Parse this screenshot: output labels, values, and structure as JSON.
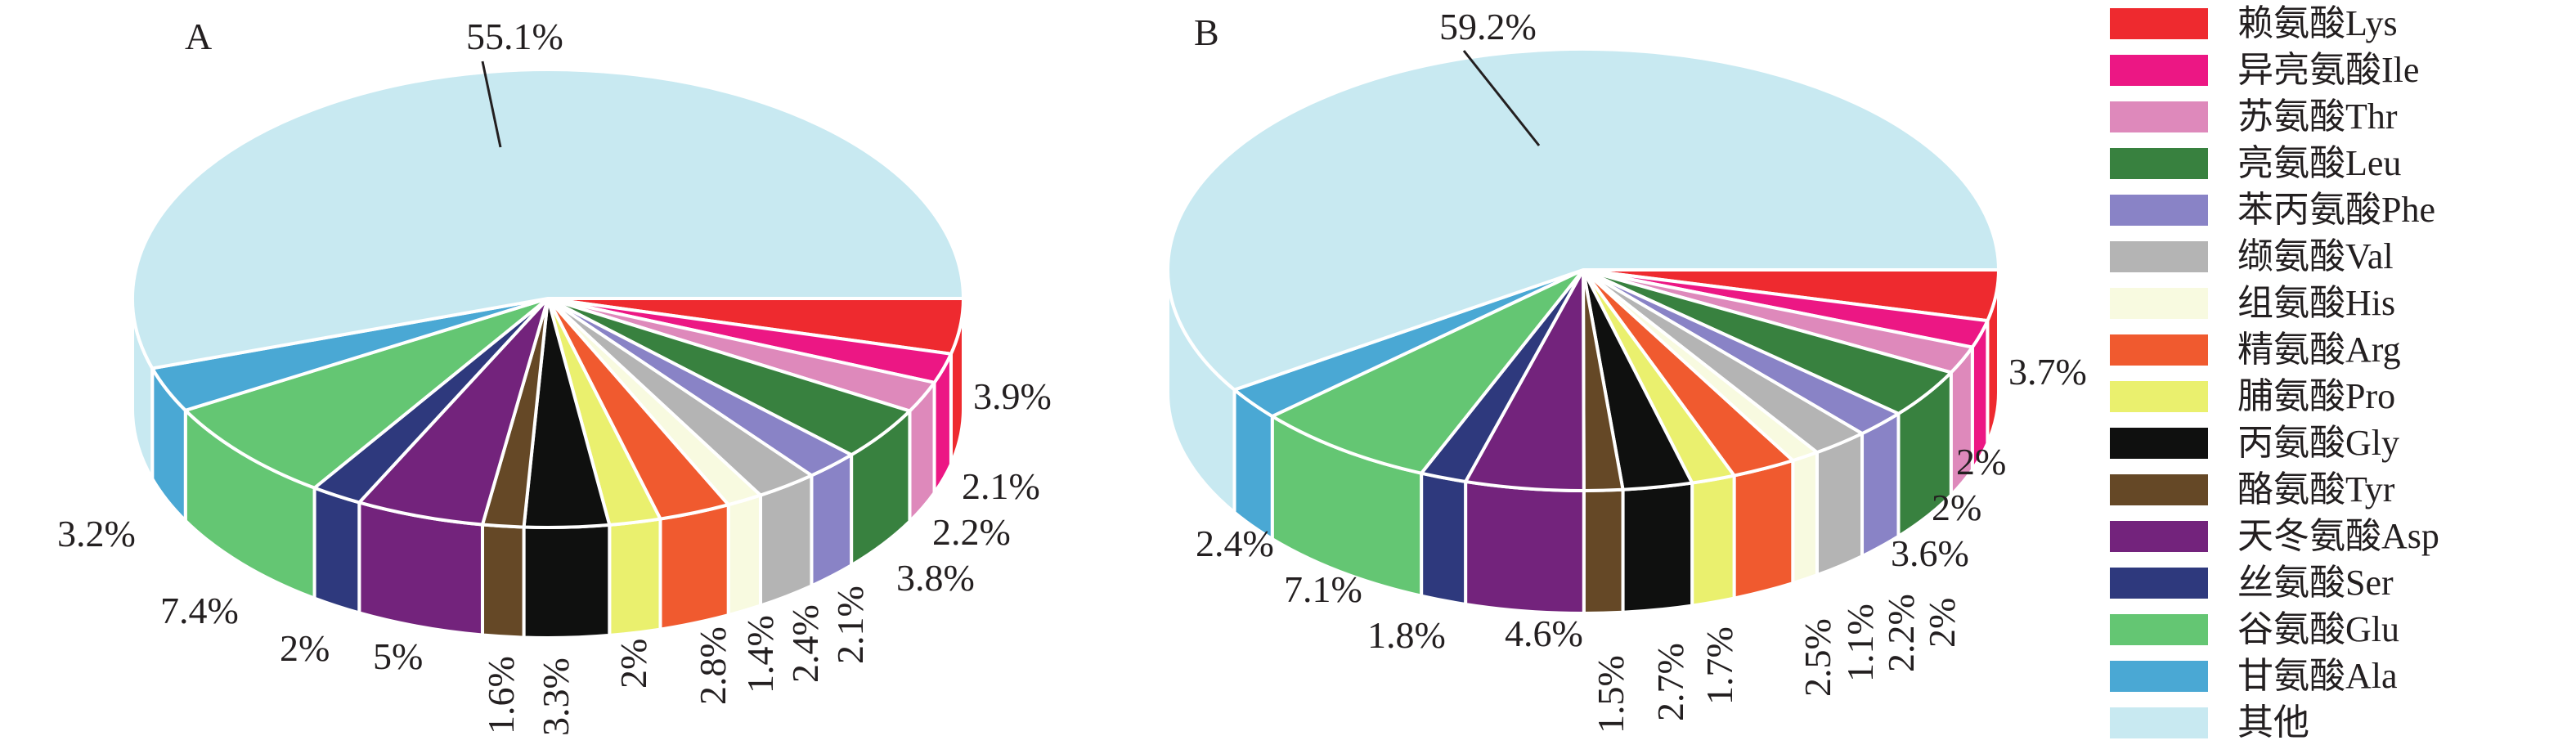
{
  "chart_data": {
    "type": "pie",
    "style": "3d-pie",
    "legend_placement": "right",
    "categories": [
      "赖氨酸Lys",
      "异亮氨酸Ile",
      "苏氨酸Thr",
      "亮氨酸Leu",
      "苯丙氨酸Phe",
      "缬氨酸Val",
      "组氨酸His",
      "精氨酸Arg",
      "脯氨酸Pro",
      "丙氨酸Gly",
      "酪氨酸Tyr",
      "天冬氨酸Asp",
      "丝氨酸Ser",
      "谷氨酸Glu",
      "甘氨酸Ala",
      "其他"
    ],
    "colors": [
      "#ee2a2f",
      "#ec1784",
      "#de89bb",
      "#38813f",
      "#8983c6",
      "#b4b4b4",
      "#f8fae0",
      "#f05a2f",
      "#eaf06e",
      "#0f100f",
      "#654826",
      "#73237c",
      "#2e397d",
      "#64c673",
      "#4aa8d4",
      "#c8e9f1"
    ],
    "charts": [
      {
        "panel": "A",
        "values": [
          3.9,
          2.1,
          2.2,
          3.8,
          2.1,
          2.4,
          1.4,
          2.8,
          2,
          3.3,
          1.6,
          5,
          2,
          7.4,
          3.2,
          55.1
        ],
        "labels": [
          "3.9%",
          "2.1%",
          "2.2%",
          "3.8%",
          "2.1%",
          "2.4%",
          "1.4%",
          "2.8%",
          "2%",
          "3.3%",
          "1.6%",
          "5%",
          "2%",
          "7.4%",
          "3.2%",
          "55.1%"
        ]
      },
      {
        "panel": "B",
        "values": [
          3.7,
          2,
          2,
          3.6,
          2,
          2.2,
          1.1,
          2.5,
          1.7,
          2.7,
          1.5,
          4.6,
          1.8,
          7.1,
          2.4,
          59.2
        ],
        "labels": [
          "3.7%",
          "2%",
          "2%",
          "3.6%",
          "2%",
          "2.2%",
          "1.1%",
          "2.5%",
          "1.7%",
          "2.7%",
          "1.5%",
          "4.6%",
          "1.8%",
          "7.1%",
          "2.4%",
          "59.2%"
        ]
      }
    ]
  }
}
